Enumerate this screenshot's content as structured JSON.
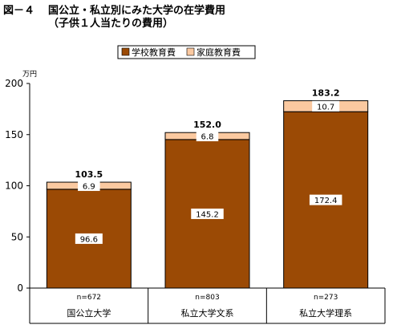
{
  "figure": {
    "number": "図－４",
    "title_line1": "国公立・私立別にみた大学の在学費用",
    "title_line2": "（子供１人当たりの費用）"
  },
  "chart_data": {
    "type": "bar",
    "stacked": true,
    "categories": [
      "国公立大学",
      "私立大学文系",
      "私立大学理系"
    ],
    "sample_sizes": [
      "n=672",
      "n=803",
      "n=273"
    ],
    "series": [
      {
        "name": "学校教育費",
        "values": [
          96.6,
          145.2,
          172.4
        ],
        "color": "#9b4a05",
        "label_texts": [
          "96.6",
          "145.2",
          "172.4"
        ]
      },
      {
        "name": "家庭教育費",
        "values": [
          6.9,
          6.8,
          10.7
        ],
        "color": "#fbc9a0",
        "label_texts": [
          "6.9",
          "6.8",
          "10.7"
        ]
      }
    ],
    "totals": [
      "103.5",
      "152.0",
      "183.2"
    ],
    "ylabel": "万円",
    "ylim": [
      0,
      200
    ],
    "yticks": [
      0,
      50,
      100,
      150,
      200
    ],
    "grid": false,
    "legend_placement": "top"
  }
}
